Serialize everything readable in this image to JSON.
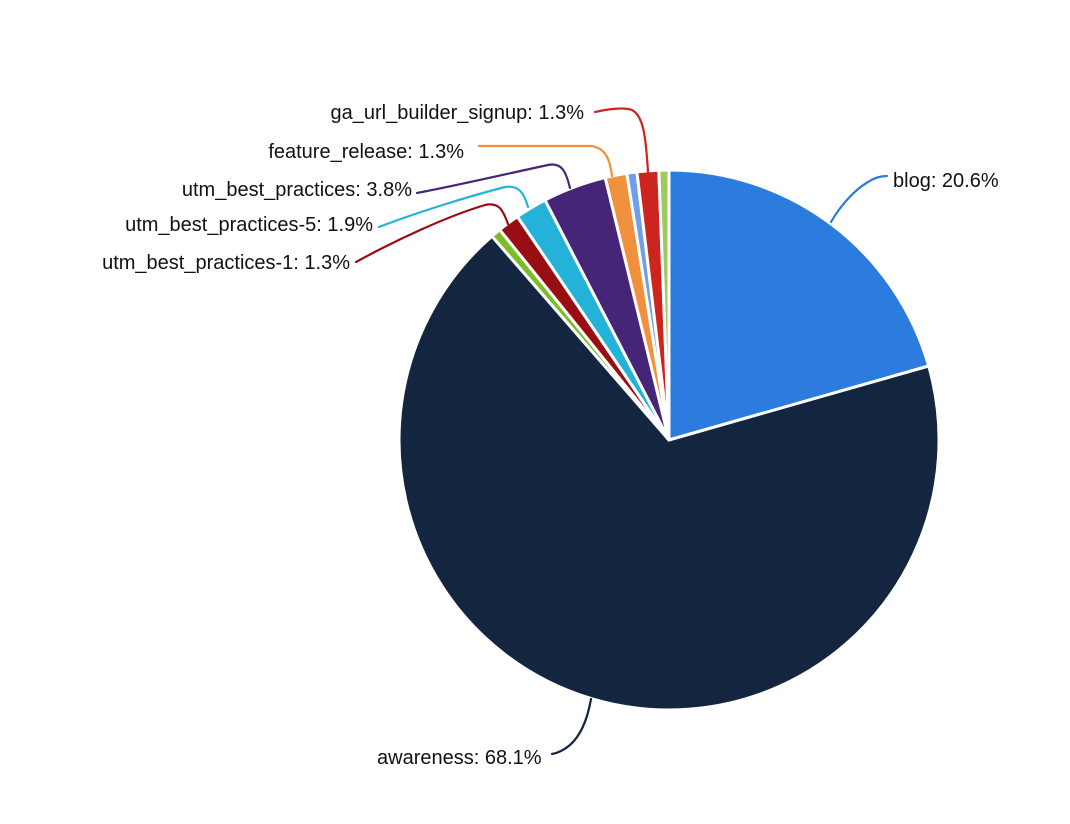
{
  "chart_data": {
    "type": "pie",
    "title": "",
    "legend": "none",
    "background_color": "#ffffff",
    "text_color": "#111111",
    "direction": "clockwise",
    "start_angle": "12 o'clock",
    "slices": [
      {
        "label": "blog",
        "percent": 20.6,
        "color": "#2b7cde",
        "annotation": "blog: 20.6%"
      },
      {
        "label": "awareness",
        "percent": 68.1,
        "color": "#13253f",
        "annotation": "awareness: 68.1%"
      },
      {
        "label": "",
        "percent": 0.6,
        "color": "#7ebb28",
        "annotation": ""
      },
      {
        "label": "utm_best_practices-1",
        "percent": 1.3,
        "color": "#980e12",
        "annotation": "utm_best_practices-1: 1.3%"
      },
      {
        "label": "utm_best_practices-5",
        "percent": 1.9,
        "color": "#25b2d9",
        "annotation": "utm_best_practices-5: 1.9%"
      },
      {
        "label": "utm_best_practices",
        "percent": 3.8,
        "color": "#462579",
        "annotation": "utm_best_practices: 3.8%"
      },
      {
        "label": "feature_release",
        "percent": 1.3,
        "color": "#f2913d",
        "annotation": "feature_release: 1.3%"
      },
      {
        "label": "",
        "percent": 0.6,
        "color": "#6e9fe8",
        "annotation": ""
      },
      {
        "label": "ga_url_builder_signup",
        "percent": 1.3,
        "color": "#ce2420",
        "annotation": "ga_url_builder_signup: 1.3%"
      },
      {
        "label": "",
        "percent": 0.6,
        "color": "#9fca62",
        "annotation": ""
      }
    ]
  }
}
